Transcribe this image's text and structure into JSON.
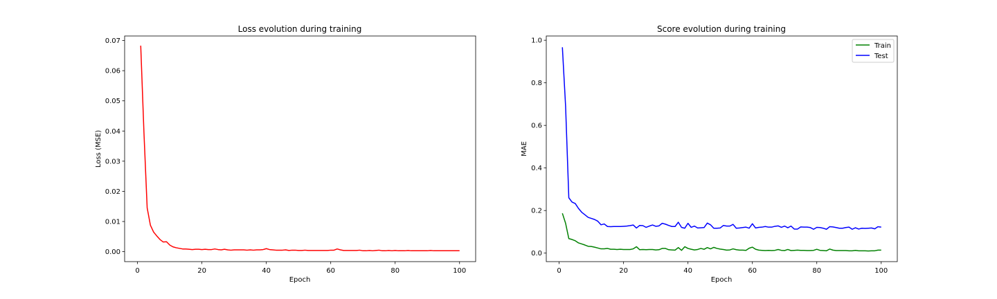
{
  "chart_data": [
    {
      "type": "line",
      "title": "Loss evolution during training",
      "xlabel": "Epoch",
      "ylabel": "Loss (MSE)",
      "xlim": [
        -4,
        105
      ],
      "ylim": [
        -0.0033,
        0.0715
      ],
      "xticks": [
        0,
        20,
        40,
        60,
        80,
        100
      ],
      "xtick_labels": [
        "0",
        "20",
        "40",
        "60",
        "80",
        "100"
      ],
      "yticks": [
        0.0,
        0.01,
        0.02,
        0.03,
        0.04,
        0.05,
        0.06,
        0.07
      ],
      "ytick_labels": [
        "0.00",
        "0.01",
        "0.02",
        "0.03",
        "0.04",
        "0.05",
        "0.06",
        "0.07"
      ],
      "grid": false,
      "legend": null,
      "series": [
        {
          "color": "#ff0000",
          "x": [
            1,
            2,
            3,
            4,
            5,
            6,
            7,
            8,
            9,
            10,
            11,
            12,
            13,
            14,
            15,
            16,
            17,
            18,
            19,
            20,
            21,
            22,
            23,
            24,
            25,
            26,
            27,
            28,
            29,
            30,
            31,
            32,
            33,
            34,
            35,
            36,
            37,
            38,
            39,
            40,
            41,
            42,
            43,
            44,
            45,
            46,
            47,
            48,
            49,
            50,
            51,
            52,
            53,
            54,
            55,
            56,
            57,
            58,
            59,
            60,
            61,
            62,
            63,
            64,
            65,
            66,
            67,
            68,
            69,
            70,
            71,
            72,
            73,
            74,
            75,
            76,
            77,
            78,
            79,
            80,
            81,
            82,
            83,
            84,
            85,
            86,
            87,
            88,
            89,
            90,
            91,
            92,
            93,
            94,
            95,
            96,
            97,
            98,
            99,
            100
          ],
          "y": [
            0.0683,
            0.0395,
            0.0145,
            0.0088,
            0.0065,
            0.0052,
            0.004,
            0.0032,
            0.0033,
            0.0022,
            0.0016,
            0.0013,
            0.0011,
            0.0009,
            0.0009,
            0.0008,
            0.0007,
            0.0008,
            0.0008,
            0.0007,
            0.0008,
            0.0007,
            0.0007,
            0.0009,
            0.0007,
            0.0006,
            0.0008,
            0.0006,
            0.0005,
            0.0006,
            0.0006,
            0.0006,
            0.0006,
            0.0005,
            0.0006,
            0.0005,
            0.0006,
            0.0006,
            0.0007,
            0.001,
            0.0007,
            0.0006,
            0.0005,
            0.0005,
            0.0005,
            0.0006,
            0.0004,
            0.0005,
            0.0005,
            0.0004,
            0.0004,
            0.0005,
            0.0004,
            0.0004,
            0.0004,
            0.0004,
            0.0004,
            0.0004,
            0.0004,
            0.0005,
            0.0005,
            0.0009,
            0.0006,
            0.0004,
            0.0004,
            0.0004,
            0.0004,
            0.0004,
            0.0005,
            0.0003,
            0.0003,
            0.0004,
            0.0003,
            0.0004,
            0.0005,
            0.0003,
            0.0003,
            0.0004,
            0.0003,
            0.0004,
            0.0003,
            0.0003,
            0.0003,
            0.0004,
            0.0003,
            0.0003,
            0.0003,
            0.0003,
            0.0003,
            0.0003,
            0.0004,
            0.0003,
            0.0003,
            0.0003,
            0.0003,
            0.0003,
            0.0003,
            0.0003,
            0.0003,
            0.0003
          ]
        }
      ]
    },
    {
      "type": "line",
      "title": "Score evolution during training",
      "xlabel": "Epoch",
      "ylabel": "MAE",
      "xlim": [
        -4,
        105
      ],
      "ylim": [
        -0.04,
        1.02
      ],
      "xticks": [
        0,
        20,
        40,
        60,
        80,
        100
      ],
      "xtick_labels": [
        "0",
        "20",
        "40",
        "60",
        "80",
        "100"
      ],
      "yticks": [
        0.0,
        0.2,
        0.4,
        0.6,
        0.8,
        1.0
      ],
      "ytick_labels": [
        "0.0",
        "0.2",
        "0.4",
        "0.6",
        "0.8",
        "1.0"
      ],
      "grid": false,
      "legend": "top-right",
      "series": [
        {
          "name": "Train",
          "color": "#008000",
          "x": [
            1,
            2,
            3,
            4,
            5,
            6,
            7,
            8,
            9,
            10,
            11,
            12,
            13,
            14,
            15,
            16,
            17,
            18,
            19,
            20,
            21,
            22,
            23,
            24,
            25,
            26,
            27,
            28,
            29,
            30,
            31,
            32,
            33,
            34,
            35,
            36,
            37,
            38,
            39,
            40,
            41,
            42,
            43,
            44,
            45,
            46,
            47,
            48,
            49,
            50,
            51,
            52,
            53,
            54,
            55,
            56,
            57,
            58,
            59,
            60,
            61,
            62,
            63,
            64,
            65,
            66,
            67,
            68,
            69,
            70,
            71,
            72,
            73,
            74,
            75,
            76,
            77,
            78,
            79,
            80,
            81,
            82,
            83,
            84,
            85,
            86,
            87,
            88,
            89,
            90,
            91,
            92,
            93,
            94,
            95,
            96,
            97,
            98,
            99,
            100
          ],
          "y": [
            0.187,
            0.14,
            0.068,
            0.064,
            0.058,
            0.048,
            0.043,
            0.038,
            0.032,
            0.031,
            0.028,
            0.024,
            0.02,
            0.02,
            0.022,
            0.018,
            0.018,
            0.017,
            0.018,
            0.017,
            0.017,
            0.017,
            0.02,
            0.03,
            0.016,
            0.017,
            0.016,
            0.017,
            0.017,
            0.015,
            0.016,
            0.022,
            0.022,
            0.016,
            0.015,
            0.014,
            0.026,
            0.013,
            0.03,
            0.022,
            0.018,
            0.015,
            0.017,
            0.022,
            0.018,
            0.026,
            0.02,
            0.027,
            0.022,
            0.019,
            0.017,
            0.014,
            0.015,
            0.02,
            0.016,
            0.014,
            0.014,
            0.013,
            0.023,
            0.028,
            0.018,
            0.014,
            0.013,
            0.012,
            0.013,
            0.012,
            0.013,
            0.017,
            0.013,
            0.012,
            0.017,
            0.012,
            0.013,
            0.014,
            0.013,
            0.013,
            0.012,
            0.012,
            0.013,
            0.018,
            0.013,
            0.012,
            0.011,
            0.019,
            0.014,
            0.012,
            0.012,
            0.012,
            0.012,
            0.011,
            0.011,
            0.013,
            0.011,
            0.011,
            0.011,
            0.01,
            0.011,
            0.011,
            0.014,
            0.014
          ]
        },
        {
          "name": "Test",
          "color": "#0000ff",
          "x": [
            1,
            2,
            3,
            4,
            5,
            6,
            7,
            8,
            9,
            10,
            11,
            12,
            13,
            14,
            15,
            16,
            17,
            18,
            19,
            20,
            21,
            22,
            23,
            24,
            25,
            26,
            27,
            28,
            29,
            30,
            31,
            32,
            33,
            34,
            35,
            36,
            37,
            38,
            39,
            40,
            41,
            42,
            43,
            44,
            45,
            46,
            47,
            48,
            49,
            50,
            51,
            52,
            53,
            54,
            55,
            56,
            57,
            58,
            59,
            60,
            61,
            62,
            63,
            64,
            65,
            66,
            67,
            68,
            69,
            70,
            71,
            72,
            73,
            74,
            75,
            76,
            77,
            78,
            79,
            80,
            81,
            82,
            83,
            84,
            85,
            86,
            87,
            88,
            89,
            90,
            91,
            92,
            93,
            94,
            95,
            96,
            97,
            98,
            99,
            100
          ],
          "y": [
            0.967,
            0.69,
            0.26,
            0.24,
            0.233,
            0.21,
            0.192,
            0.18,
            0.168,
            0.163,
            0.158,
            0.15,
            0.133,
            0.137,
            0.125,
            0.124,
            0.125,
            0.125,
            0.125,
            0.126,
            0.127,
            0.129,
            0.132,
            0.118,
            0.13,
            0.129,
            0.121,
            0.127,
            0.132,
            0.126,
            0.128,
            0.14,
            0.136,
            0.13,
            0.125,
            0.125,
            0.145,
            0.121,
            0.117,
            0.14,
            0.121,
            0.127,
            0.118,
            0.119,
            0.12,
            0.141,
            0.133,
            0.117,
            0.117,
            0.118,
            0.13,
            0.127,
            0.127,
            0.135,
            0.117,
            0.118,
            0.12,
            0.122,
            0.117,
            0.138,
            0.118,
            0.121,
            0.122,
            0.125,
            0.122,
            0.122,
            0.126,
            0.128,
            0.121,
            0.127,
            0.119,
            0.127,
            0.113,
            0.113,
            0.123,
            0.122,
            0.122,
            0.12,
            0.112,
            0.121,
            0.12,
            0.117,
            0.112,
            0.124,
            0.123,
            0.12,
            0.117,
            0.117,
            0.12,
            0.122,
            0.112,
            0.119,
            0.113,
            0.117,
            0.116,
            0.117,
            0.118,
            0.114,
            0.124,
            0.122
          ]
        }
      ]
    }
  ]
}
